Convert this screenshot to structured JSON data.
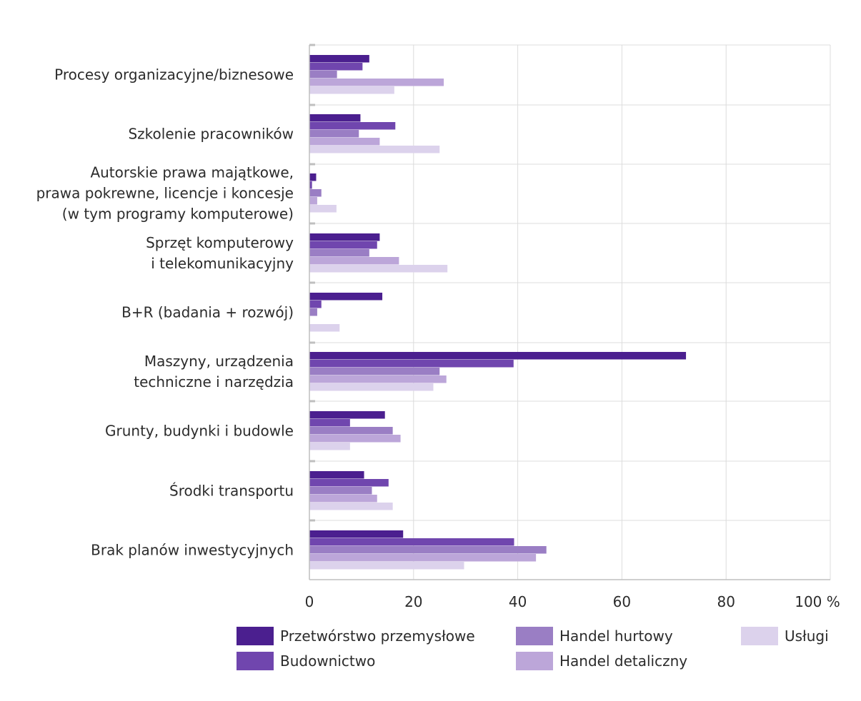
{
  "chart_data": {
    "type": "bar",
    "orientation": "horizontal",
    "categories": [
      [
        "Procesy organizacyjne/biznesowe"
      ],
      [
        "Szkolenie pracowników"
      ],
      [
        "Autorskie prawa majątkowe,",
        "prawa pokrewne, licencje i koncesje",
        "(w tym programy komputerowe)"
      ],
      [
        "Sprzęt komputerowy",
        "i telekomunikacyjny"
      ],
      [
        "B+R (badania + rozwój)"
      ],
      [
        "Maszyny, urządzenia",
        "techniczne i narzędzia"
      ],
      [
        "Grunty, budynki i budowle"
      ],
      [
        "Środki transportu"
      ],
      [
        "Brak planów inwestycyjnych"
      ]
    ],
    "series": [
      {
        "name": "Przetwórstwo przemysłowe",
        "color": "#4b1f8f",
        "values": [
          11.5,
          9.8,
          1.3,
          13.5,
          14.0,
          72.3,
          14.5,
          10.5,
          18.0
        ]
      },
      {
        "name": "Budownictwo",
        "color": "#7046ae",
        "values": [
          10.2,
          16.5,
          0.5,
          13.0,
          2.3,
          39.2,
          7.8,
          15.2,
          39.3
        ]
      },
      {
        "name": "Handel hurtowy",
        "color": "#9a7ec4",
        "values": [
          5.3,
          9.5,
          2.3,
          11.5,
          1.5,
          25.0,
          16.0,
          12.0,
          45.5
        ]
      },
      {
        "name": "Handel detaliczny",
        "color": "#bca6d9",
        "values": [
          25.8,
          13.5,
          1.5,
          17.2,
          0.0,
          26.3,
          17.5,
          13.0,
          43.5
        ]
      },
      {
        "name": "Usługi",
        "color": "#dcd2ec",
        "values": [
          16.3,
          25.0,
          5.2,
          26.5,
          5.8,
          23.8,
          7.8,
          16.0,
          29.7
        ]
      }
    ],
    "xlim": [
      0,
      100
    ],
    "xticks": [
      "0",
      "20",
      "40",
      "60",
      "80",
      "100 %"
    ],
    "grid": true,
    "legend_position": "bottom"
  }
}
